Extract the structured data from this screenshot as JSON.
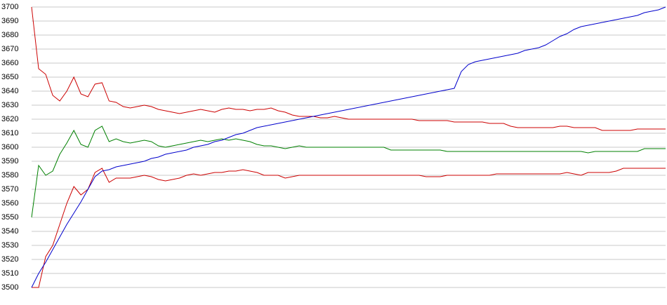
{
  "chart_data": {
    "type": "line",
    "grid": true,
    "ylim": [
      3500,
      3700
    ],
    "yticks": [
      3500,
      3510,
      3520,
      3530,
      3540,
      3550,
      3560,
      3570,
      3580,
      3590,
      3600,
      3610,
      3620,
      3630,
      3640,
      3650,
      3660,
      3670,
      3680,
      3690,
      3700
    ],
    "series": [
      {
        "color": "#cc0000",
        "values": [
          3700,
          3656,
          3652,
          3637,
          3633,
          3640,
          3650,
          3638,
          3636,
          3645,
          3646,
          3633,
          3632,
          3629,
          3628,
          3629,
          3630,
          3629,
          3627,
          3626,
          3625,
          3624,
          3625,
          3626,
          3627,
          3626,
          3625,
          3627,
          3628,
          3627,
          3627,
          3626,
          3627,
          3627,
          3628,
          3626,
          3625,
          3623,
          3622,
          3622,
          3622,
          3621,
          3621,
          3622,
          3621,
          3620,
          3620,
          3620,
          3620,
          3620,
          3620,
          3620,
          3620,
          3620,
          3620,
          3619,
          3619,
          3619,
          3619,
          3619,
          3618,
          3618,
          3618,
          3618,
          3618,
          3617,
          3617,
          3617,
          3615,
          3614,
          3614,
          3614,
          3614,
          3614,
          3614,
          3615,
          3615,
          3614,
          3614,
          3614,
          3614,
          3612,
          3612,
          3612,
          3612,
          3612,
          3613,
          3613,
          3613,
          3613,
          3613
        ]
      },
      {
        "color": "#008000",
        "values": [
          3550,
          3587,
          3580,
          3583,
          3595,
          3603,
          3612,
          3602,
          3600,
          3612,
          3615,
          3604,
          3606,
          3604,
          3603,
          3604,
          3605,
          3604,
          3601,
          3600,
          3601,
          3602,
          3603,
          3604,
          3605,
          3604,
          3605,
          3606,
          3605,
          3606,
          3605,
          3604,
          3602,
          3601,
          3601,
          3600,
          3599,
          3600,
          3601,
          3600,
          3600,
          3600,
          3600,
          3600,
          3600,
          3600,
          3600,
          3600,
          3600,
          3600,
          3600,
          3598,
          3598,
          3598,
          3598,
          3598,
          3598,
          3598,
          3598,
          3597,
          3597,
          3597,
          3597,
          3597,
          3597,
          3597,
          3597,
          3597,
          3597,
          3597,
          3597,
          3597,
          3597,
          3597,
          3597,
          3597,
          3597,
          3597,
          3597,
          3596,
          3597,
          3597,
          3597,
          3597,
          3597,
          3597,
          3597,
          3599,
          3599,
          3599,
          3599
        ]
      },
      {
        "color": "#cc0000",
        "values": [
          3500,
          3500,
          3522,
          3530,
          3545,
          3560,
          3572,
          3566,
          3570,
          3582,
          3585,
          3575,
          3578,
          3578,
          3578,
          3579,
          3580,
          3579,
          3577,
          3576,
          3577,
          3578,
          3580,
          3581,
          3580,
          3581,
          3582,
          3582,
          3583,
          3583,
          3584,
          3583,
          3582,
          3580,
          3580,
          3580,
          3578,
          3579,
          3580,
          3580,
          3580,
          3580,
          3580,
          3580,
          3580,
          3580,
          3580,
          3580,
          3580,
          3580,
          3580,
          3580,
          3580,
          3580,
          3580,
          3580,
          3579,
          3579,
          3579,
          3580,
          3580,
          3580,
          3580,
          3580,
          3580,
          3580,
          3581,
          3581,
          3581,
          3581,
          3581,
          3581,
          3581,
          3581,
          3581,
          3581,
          3582,
          3581,
          3580,
          3582,
          3582,
          3582,
          3582,
          3583,
          3585,
          3585,
          3585,
          3585,
          3585,
          3585,
          3585
        ]
      },
      {
        "color": "#0000cc",
        "values": [
          3500,
          3510,
          3518,
          3527,
          3536,
          3545,
          3553,
          3561,
          3570,
          3579,
          3583,
          3584,
          3586,
          3587,
          3588,
          3589,
          3590,
          3592,
          3593,
          3595,
          3596,
          3597,
          3598,
          3600,
          3601,
          3602,
          3604,
          3605,
          3607,
          3609,
          3610,
          3612,
          3614,
          3615,
          3616,
          3617,
          3618,
          3619,
          3620,
          3621,
          3622,
          3623,
          3624,
          3625,
          3626,
          3627,
          3628,
          3629,
          3630,
          3631,
          3632,
          3633,
          3634,
          3635,
          3636,
          3637,
          3638,
          3639,
          3640,
          3641,
          3642,
          3654,
          3659,
          3661,
          3662,
          3663,
          3664,
          3665,
          3666,
          3667,
          3669,
          3670,
          3671,
          3673,
          3676,
          3679,
          3681,
          3684,
          3686,
          3687,
          3688,
          3689,
          3690,
          3691,
          3692,
          3693,
          3694,
          3696,
          3697,
          3698,
          3700
        ]
      }
    ]
  }
}
